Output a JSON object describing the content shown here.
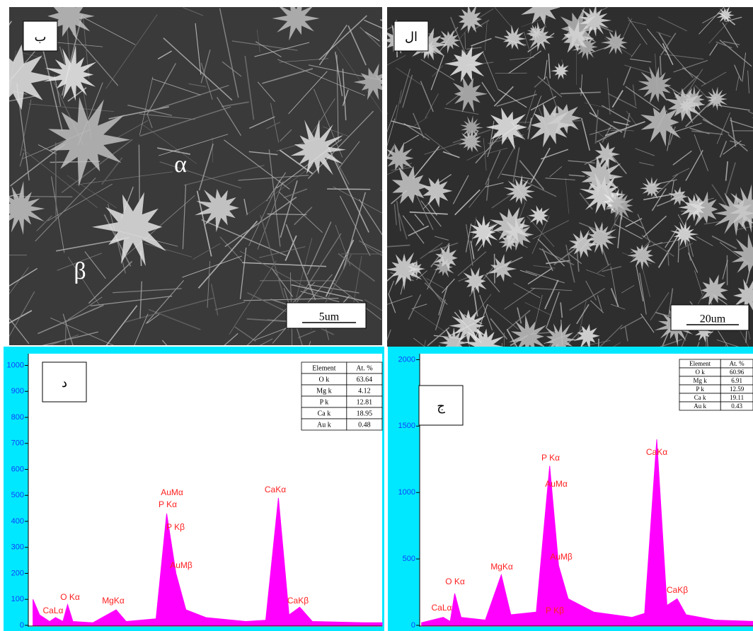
{
  "images": [
    {
      "label": "ب",
      "scale_bar": "5um",
      "markers": [
        "α",
        "β"
      ]
    },
    {
      "label": "ال",
      "scale_bar": "20um"
    }
  ],
  "chart_data": [
    {
      "type": "area",
      "label": "د",
      "color": "#ff00ff",
      "x": [
        0,
        0.1,
        0.25,
        0.34,
        0.45,
        0.52,
        0.6,
        0.9,
        1.25,
        1.4,
        1.85,
        2.01,
        2.15,
        2.3,
        2.6,
        3.2,
        3.5,
        3.69,
        3.85,
        4.01,
        4.2,
        5.0,
        5.25
      ],
      "values": [
        100,
        40,
        15,
        30,
        15,
        80,
        15,
        10,
        60,
        15,
        25,
        430,
        200,
        60,
        30,
        15,
        20,
        490,
        40,
        70,
        15,
        10,
        10
      ],
      "xlim": [
        -0.07,
        5.25
      ],
      "ylim": [
        0,
        1045
      ],
      "yticks": [
        0,
        100,
        200,
        300,
        400,
        500,
        600,
        700,
        800,
        900,
        1000
      ],
      "annotations": [
        "CaLα",
        "O Kα",
        "MgKα",
        "AuMα",
        "P Kα",
        "P Kβ",
        "AuMβ",
        "CaKα",
        "CaKβ"
      ],
      "table": {
        "header": [
          "Element",
          "At. %"
        ],
        "rows": [
          [
            "O k",
            63.64
          ],
          [
            "Mg k",
            4.12
          ],
          [
            "P k",
            12.81
          ],
          [
            "Ca k",
            18.95
          ],
          [
            "Au k",
            0.48
          ]
        ]
      }
    },
    {
      "type": "area",
      "label": "ج",
      "color": "#ff00ff",
      "x": [
        0,
        0.34,
        0.45,
        0.52,
        0.62,
        1.0,
        1.25,
        1.4,
        1.8,
        2.01,
        2.15,
        2.3,
        2.7,
        3.3,
        3.5,
        3.69,
        3.85,
        4.01,
        4.15,
        4.6,
        5.2
      ],
      "values": [
        20,
        60,
        30,
        240,
        60,
        40,
        380,
        80,
        100,
        1200,
        450,
        200,
        100,
        60,
        90,
        1400,
        150,
        200,
        80,
        40,
        30
      ],
      "xlim": [
        -0.03,
        5.2
      ],
      "ylim": [
        0,
        2045
      ],
      "yticks": [
        0,
        500,
        1000,
        1500,
        2000
      ],
      "annotations": [
        "CaLα",
        "O Kα",
        "MgKα",
        "P Kα",
        "AuMα",
        "AuMβ",
        "P Kβ",
        "CaKα",
        "CaKβ"
      ],
      "table": {
        "header": [
          "Element",
          "At. %"
        ],
        "rows": [
          [
            "O k",
            60.96
          ],
          [
            "Mg k",
            6.91
          ],
          [
            "P k",
            12.59
          ],
          [
            "Ca k",
            19.11
          ],
          [
            "Au k",
            0.43
          ]
        ]
      }
    }
  ]
}
